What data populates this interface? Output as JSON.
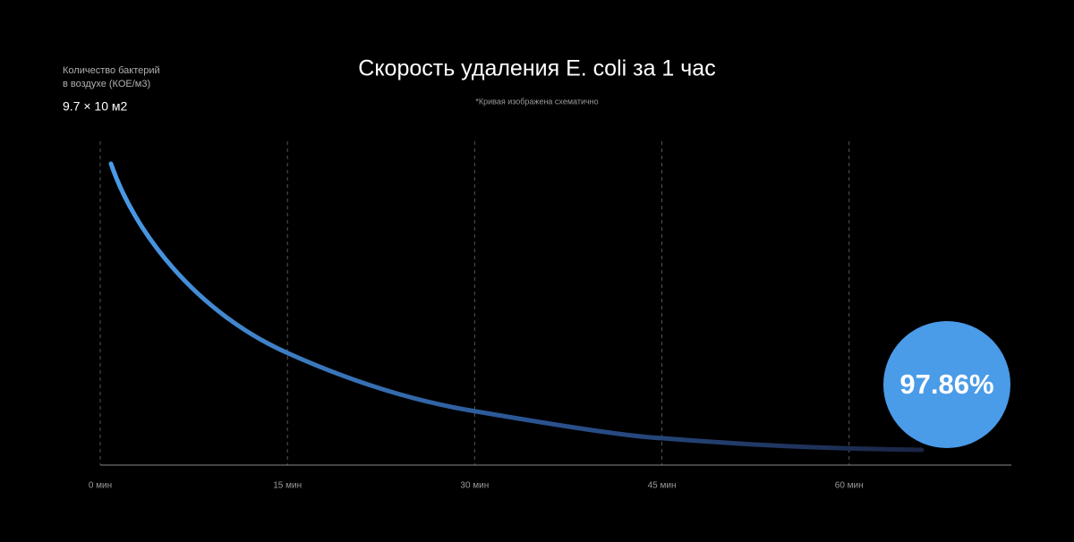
{
  "chart_data": {
    "type": "line",
    "title": "Скорость удаления E. coli за 1 час",
    "subtitle": "*Кривая изображена схематично",
    "y_label": [
      "Количество бактерий",
      "в воздухе (КОЕ/м3)"
    ],
    "start_value": "9.7 × 10 м2",
    "result_label": "97.86%",
    "xlim": [
      0,
      73
    ],
    "xticks": [
      {
        "value": 0,
        "label": "0 мин"
      },
      {
        "value": 15,
        "label": "15 мин"
      },
      {
        "value": 30,
        "label": "30 мин"
      },
      {
        "value": 45,
        "label": "45 мин"
      },
      {
        "value": 60,
        "label": "60 мин"
      }
    ],
    "grid": true,
    "color": "#4a9be8"
  }
}
